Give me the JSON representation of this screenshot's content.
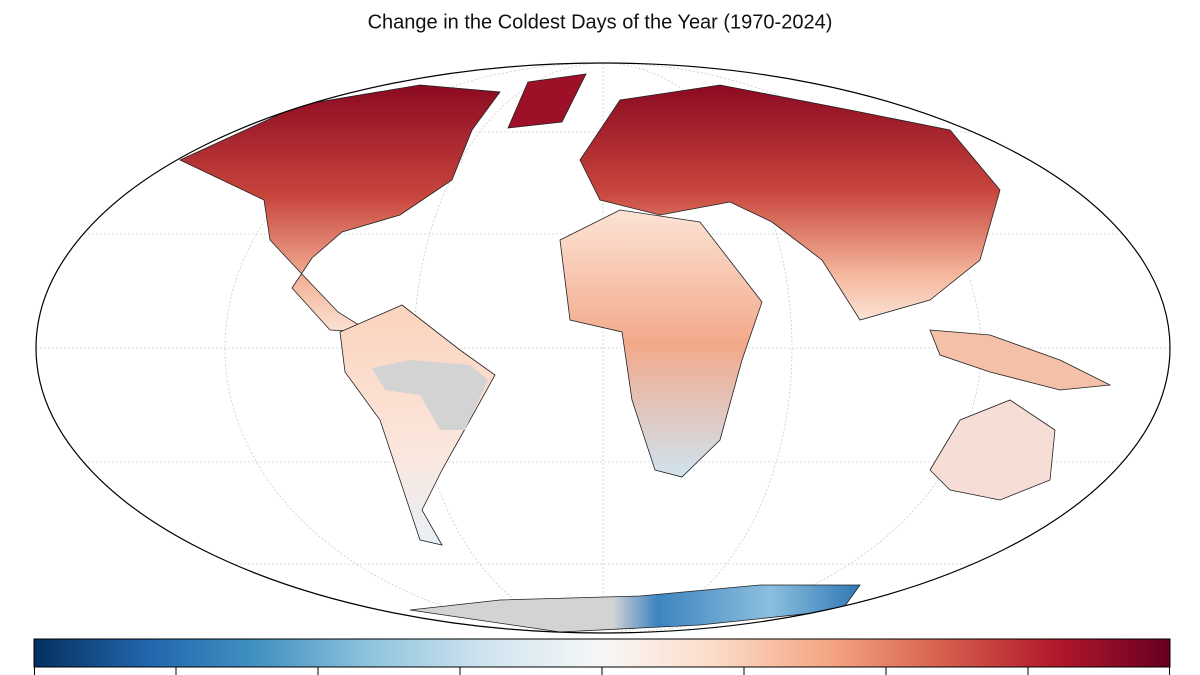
{
  "title": "Change in the Coldest Days of the Year (1970-2024)"
}
